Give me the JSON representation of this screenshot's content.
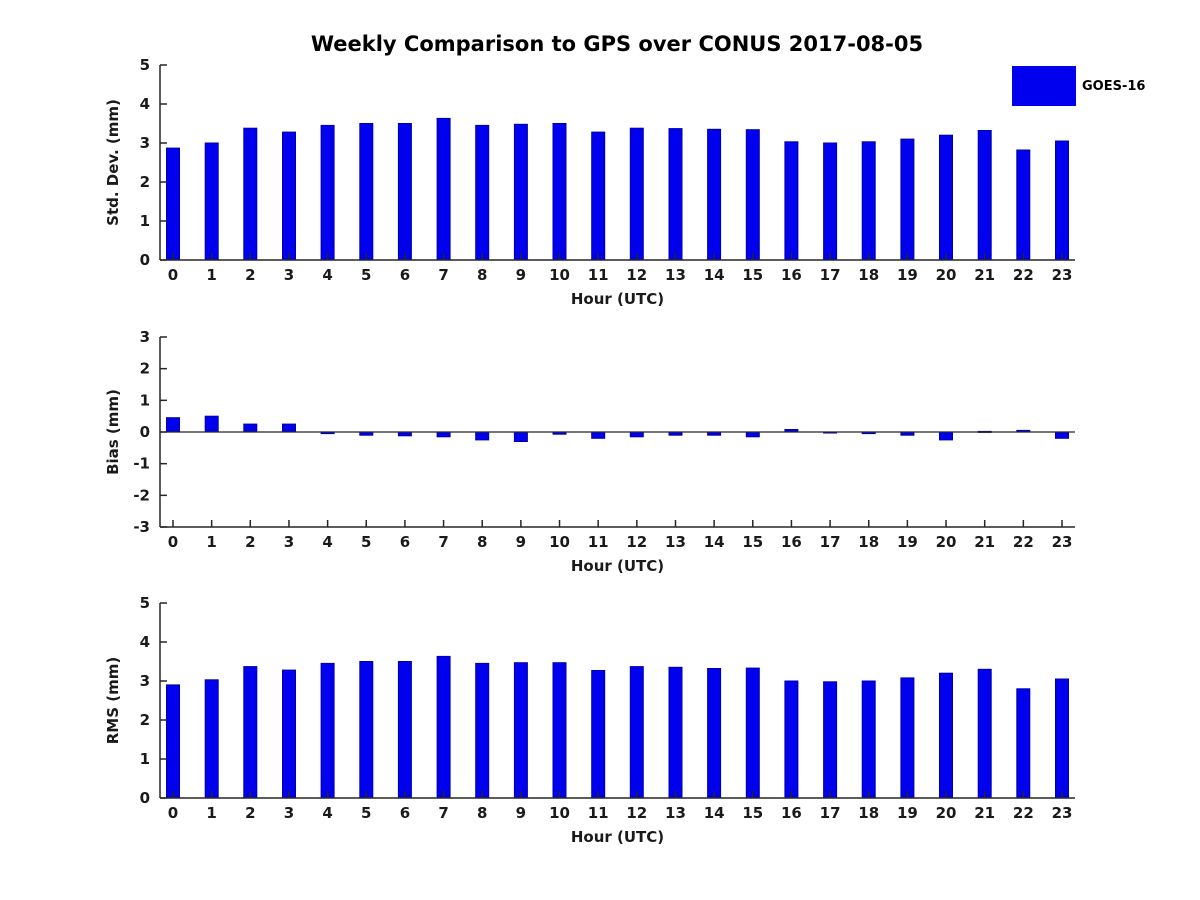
{
  "figure_title": "Weekly Comparison to GPS over CONUS 2017-08-05",
  "legend": {
    "label": "GOES-16"
  },
  "colors": {
    "bar_fill": "#0000EE",
    "bar_edge": "#0000AA",
    "axis": "#262626",
    "text": "#1a1a1a"
  },
  "chart_data": [
    {
      "type": "bar",
      "ylabel": "Std. Dev. (mm)",
      "xlabel": "Hour (UTC)",
      "categories": [
        "0",
        "1",
        "2",
        "3",
        "4",
        "5",
        "6",
        "7",
        "8",
        "9",
        "10",
        "11",
        "12",
        "13",
        "14",
        "15",
        "16",
        "17",
        "18",
        "19",
        "20",
        "21",
        "22",
        "23"
      ],
      "values": [
        2.87,
        3.0,
        3.38,
        3.28,
        3.45,
        3.5,
        3.5,
        3.63,
        3.45,
        3.48,
        3.5,
        3.28,
        3.38,
        3.37,
        3.35,
        3.34,
        3.03,
        3.0,
        3.03,
        3.1,
        3.2,
        3.32,
        2.82,
        3.05
      ],
      "ylim": [
        0,
        5
      ],
      "yticks": [
        0,
        1,
        2,
        3,
        4,
        5
      ],
      "grid": false,
      "series_name": "GOES-16"
    },
    {
      "type": "bar",
      "ylabel": "Bias (mm)",
      "xlabel": "Hour (UTC)",
      "categories": [
        "0",
        "1",
        "2",
        "3",
        "4",
        "5",
        "6",
        "7",
        "8",
        "9",
        "10",
        "11",
        "12",
        "13",
        "14",
        "15",
        "16",
        "17",
        "18",
        "19",
        "20",
        "21",
        "22",
        "23"
      ],
      "values": [
        0.45,
        0.5,
        0.25,
        0.25,
        -0.05,
        -0.1,
        -0.12,
        -0.15,
        -0.25,
        -0.3,
        -0.07,
        -0.2,
        -0.15,
        -0.1,
        -0.1,
        -0.15,
        0.08,
        -0.02,
        -0.05,
        -0.1,
        -0.25,
        0.02,
        0.05,
        -0.2
      ],
      "ylim": [
        -3,
        3
      ],
      "yticks": [
        -3,
        -2,
        -1,
        0,
        1,
        2,
        3
      ],
      "grid": false,
      "series_name": "GOES-16"
    },
    {
      "type": "bar",
      "ylabel": "RMS (mm)",
      "xlabel": "Hour (UTC)",
      "categories": [
        "0",
        "1",
        "2",
        "3",
        "4",
        "5",
        "6",
        "7",
        "8",
        "9",
        "10",
        "11",
        "12",
        "13",
        "14",
        "15",
        "16",
        "17",
        "18",
        "19",
        "20",
        "21",
        "22",
        "23"
      ],
      "values": [
        2.9,
        3.03,
        3.37,
        3.28,
        3.45,
        3.5,
        3.5,
        3.63,
        3.45,
        3.47,
        3.47,
        3.27,
        3.37,
        3.35,
        3.32,
        3.33,
        3.0,
        2.98,
        3.0,
        3.08,
        3.2,
        3.3,
        2.8,
        3.05
      ],
      "ylim": [
        0,
        5
      ],
      "yticks": [
        0,
        1,
        2,
        3,
        4,
        5
      ],
      "grid": false,
      "series_name": "GOES-16"
    }
  ]
}
